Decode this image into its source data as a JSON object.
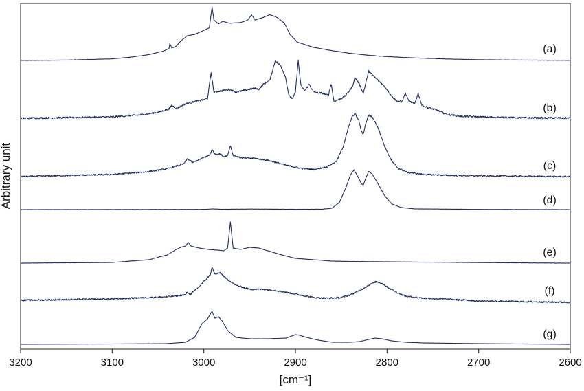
{
  "chart_data": {
    "type": "line",
    "title": "",
    "xlabel": "[cm⁻¹]",
    "ylabel": "Arbitrary unit",
    "xlim": [
      3200,
      2600
    ],
    "x_reversed": true,
    "xticks": [
      3200,
      3100,
      3000,
      2900,
      2800,
      2700,
      2600
    ],
    "yticks": [],
    "grid": false,
    "legend": "none",
    "line_color": "#1f2b5e",
    "series": [
      {
        "name": "(a)",
        "baseline": 0,
        "noise": 0.25,
        "points": [
          [
            3200,
            0
          ],
          [
            3150,
            0.6
          ],
          [
            3100,
            2.5
          ],
          [
            3080,
            5
          ],
          [
            3060,
            9
          ],
          [
            3045,
            14
          ],
          [
            3038,
            18
          ],
          [
            3037,
            26
          ],
          [
            3035,
            19
          ],
          [
            3030,
            22
          ],
          [
            3025,
            30
          ],
          [
            3018,
            38
          ],
          [
            3010,
            40
          ],
          [
            3000,
            46
          ],
          [
            2994,
            50
          ],
          [
            2991,
            82
          ],
          [
            2989,
            62
          ],
          [
            2984,
            56
          ],
          [
            2979,
            60
          ],
          [
            2972,
            57
          ],
          [
            2960,
            58
          ],
          [
            2952,
            62
          ],
          [
            2948,
            70
          ],
          [
            2944,
            62
          ],
          [
            2935,
            66
          ],
          [
            2928,
            70
          ],
          [
            2920,
            66
          ],
          [
            2912,
            57
          ],
          [
            2906,
            40
          ],
          [
            2898,
            28
          ],
          [
            2880,
            20
          ],
          [
            2860,
            15
          ],
          [
            2840,
            11
          ],
          [
            2820,
            8
          ],
          [
            2800,
            6
          ],
          [
            2780,
            4.5
          ],
          [
            2760,
            3.5
          ],
          [
            2740,
            2.5
          ],
          [
            2720,
            1.8
          ],
          [
            2700,
            1.2
          ],
          [
            2650,
            0.6
          ],
          [
            2600,
            0.2
          ]
        ]
      },
      {
        "name": "(b)",
        "baseline": 0,
        "noise": 1.3,
        "points": [
          [
            3200,
            0
          ],
          [
            3150,
            0.8
          ],
          [
            3100,
            2
          ],
          [
            3070,
            5
          ],
          [
            3050,
            9
          ],
          [
            3038,
            14
          ],
          [
            3035,
            20
          ],
          [
            3030,
            15
          ],
          [
            3020,
            22
          ],
          [
            3005,
            27
          ],
          [
            2996,
            30
          ],
          [
            2992,
            70
          ],
          [
            2989,
            40
          ],
          [
            2980,
            42
          ],
          [
            2972,
            44
          ],
          [
            2965,
            40
          ],
          [
            2958,
            42
          ],
          [
            2945,
            46
          ],
          [
            2940,
            44
          ],
          [
            2935,
            52
          ],
          [
            2928,
            58
          ],
          [
            2922,
            88
          ],
          [
            2916,
            80
          ],
          [
            2911,
            64
          ],
          [
            2907,
            34
          ],
          [
            2903,
            30
          ],
          [
            2900,
            40
          ],
          [
            2897,
            88
          ],
          [
            2894,
            50
          ],
          [
            2890,
            42
          ],
          [
            2885,
            52
          ],
          [
            2880,
            40
          ],
          [
            2870,
            38
          ],
          [
            2864,
            35
          ],
          [
            2861,
            53
          ],
          [
            2858,
            26
          ],
          [
            2850,
            30
          ],
          [
            2845,
            35
          ],
          [
            2838,
            48
          ],
          [
            2835,
            62
          ],
          [
            2830,
            52
          ],
          [
            2826,
            38
          ],
          [
            2820,
            72
          ],
          [
            2815,
            65
          ],
          [
            2810,
            58
          ],
          [
            2805,
            52
          ],
          [
            2800,
            44
          ],
          [
            2795,
            34
          ],
          [
            2790,
            27
          ],
          [
            2784,
            25
          ],
          [
            2780,
            38
          ],
          [
            2776,
            26
          ],
          [
            2770,
            22
          ],
          [
            2766,
            38
          ],
          [
            2762,
            20
          ],
          [
            2755,
            16
          ],
          [
            2745,
            12
          ],
          [
            2735,
            6
          ],
          [
            2720,
            3
          ],
          [
            2700,
            2
          ],
          [
            2650,
            0.6
          ],
          [
            2600,
            0.2
          ]
        ]
      },
      {
        "name": "(c)",
        "baseline": 0,
        "noise": 1.0,
        "points": [
          [
            3200,
            0
          ],
          [
            3100,
            3
          ],
          [
            3060,
            7
          ],
          [
            3040,
            11
          ],
          [
            3022,
            18
          ],
          [
            3018,
            25
          ],
          [
            3012,
            20
          ],
          [
            3000,
            27
          ],
          [
            2994,
            30
          ],
          [
            2991,
            38
          ],
          [
            2988,
            32
          ],
          [
            2982,
            32
          ],
          [
            2978,
            28
          ],
          [
            2974,
            30
          ],
          [
            2971,
            44
          ],
          [
            2968,
            30
          ],
          [
            2958,
            26
          ],
          [
            2945,
            26
          ],
          [
            2930,
            23
          ],
          [
            2910,
            16
          ],
          [
            2895,
            12
          ],
          [
            2880,
            10
          ],
          [
            2865,
            14
          ],
          [
            2855,
            22
          ],
          [
            2848,
            42
          ],
          [
            2842,
            70
          ],
          [
            2838,
            85
          ],
          [
            2835,
            89
          ],
          [
            2831,
            80
          ],
          [
            2828,
            64
          ],
          [
            2826,
            60
          ],
          [
            2823,
            76
          ],
          [
            2820,
            87
          ],
          [
            2816,
            84
          ],
          [
            2810,
            70
          ],
          [
            2803,
            44
          ],
          [
            2795,
            22
          ],
          [
            2788,
            12
          ],
          [
            2778,
            6
          ],
          [
            2760,
            3
          ],
          [
            2740,
            2
          ],
          [
            2700,
            1
          ],
          [
            2600,
            0
          ]
        ]
      },
      {
        "name": "(d)",
        "baseline": 0,
        "noise": 0.15,
        "points": [
          [
            3200,
            0
          ],
          [
            3000,
            0.3
          ],
          [
            2990,
            1
          ],
          [
            2980,
            0.4
          ],
          [
            2950,
            0.8
          ],
          [
            2900,
            0.4
          ],
          [
            2870,
            0.6
          ],
          [
            2860,
            2
          ],
          [
            2852,
            10
          ],
          [
            2845,
            30
          ],
          [
            2840,
            48
          ],
          [
            2836,
            55
          ],
          [
            2832,
            46
          ],
          [
            2828,
            36
          ],
          [
            2826,
            34
          ],
          [
            2823,
            44
          ],
          [
            2820,
            53
          ],
          [
            2816,
            49
          ],
          [
            2810,
            36
          ],
          [
            2803,
            20
          ],
          [
            2795,
            8
          ],
          [
            2785,
            3
          ],
          [
            2770,
            1
          ],
          [
            2700,
            0.3
          ],
          [
            2600,
            0
          ]
        ]
      },
      {
        "name": "(e)",
        "baseline": 0,
        "noise": 0.2,
        "points": [
          [
            3200,
            0
          ],
          [
            3100,
            1
          ],
          [
            3060,
            5
          ],
          [
            3040,
            12
          ],
          [
            3030,
            20
          ],
          [
            3025,
            23
          ],
          [
            3020,
            25
          ],
          [
            3017,
            30
          ],
          [
            3014,
            25
          ],
          [
            3005,
            22
          ],
          [
            2995,
            20
          ],
          [
            2985,
            19
          ],
          [
            2978,
            18
          ],
          [
            2974,
            22
          ],
          [
            2971,
            60
          ],
          [
            2968,
            22
          ],
          [
            2960,
            20
          ],
          [
            2950,
            23
          ],
          [
            2940,
            22
          ],
          [
            2930,
            18
          ],
          [
            2915,
            12
          ],
          [
            2900,
            7
          ],
          [
            2880,
            5
          ],
          [
            2860,
            3
          ],
          [
            2840,
            2.5
          ],
          [
            2800,
            2
          ],
          [
            2760,
            1.5
          ],
          [
            2700,
            0.8
          ],
          [
            2600,
            0
          ]
        ]
      },
      {
        "name": "(f)",
        "baseline": 0,
        "noise": 1.1,
        "points": [
          [
            3200,
            0
          ],
          [
            3100,
            2
          ],
          [
            3060,
            4
          ],
          [
            3040,
            5
          ],
          [
            3020,
            8
          ],
          [
            3018,
            12
          ],
          [
            3015,
            8
          ],
          [
            3005,
            20
          ],
          [
            2998,
            30
          ],
          [
            2993,
            37
          ],
          [
            2991,
            48
          ],
          [
            2988,
            38
          ],
          [
            2982,
            40
          ],
          [
            2976,
            32
          ],
          [
            2965,
            22
          ],
          [
            2950,
            16
          ],
          [
            2935,
            16
          ],
          [
            2920,
            14
          ],
          [
            2900,
            9
          ],
          [
            2880,
            4
          ],
          [
            2865,
            3
          ],
          [
            2850,
            4
          ],
          [
            2840,
            8
          ],
          [
            2830,
            14
          ],
          [
            2820,
            22
          ],
          [
            2812,
            27
          ],
          [
            2806,
            25
          ],
          [
            2798,
            18
          ],
          [
            2790,
            12
          ],
          [
            2780,
            6
          ],
          [
            2760,
            3
          ],
          [
            2740,
            2
          ],
          [
            2700,
            -1
          ],
          [
            2650,
            -2
          ],
          [
            2600,
            -3
          ]
        ]
      },
      {
        "name": "(g)",
        "baseline": 0,
        "noise": 0.1,
        "points": [
          [
            3200,
            0
          ],
          [
            3100,
            0.5
          ],
          [
            3040,
            1
          ],
          [
            3020,
            3
          ],
          [
            3010,
            10
          ],
          [
            3002,
            30
          ],
          [
            2996,
            37
          ],
          [
            2991,
            48
          ],
          [
            2988,
            38
          ],
          [
            2984,
            40
          ],
          [
            2980,
            34
          ],
          [
            2974,
            20
          ],
          [
            2965,
            10
          ],
          [
            2950,
            8
          ],
          [
            2930,
            8
          ],
          [
            2910,
            9
          ],
          [
            2900,
            14
          ],
          [
            2895,
            13
          ],
          [
            2888,
            10
          ],
          [
            2875,
            6
          ],
          [
            2860,
            3
          ],
          [
            2840,
            3
          ],
          [
            2830,
            4
          ],
          [
            2820,
            7
          ],
          [
            2813,
            9
          ],
          [
            2806,
            8
          ],
          [
            2795,
            5
          ],
          [
            2780,
            3
          ],
          [
            2760,
            2
          ],
          [
            2700,
            1
          ],
          [
            2600,
            0
          ]
        ]
      }
    ]
  }
}
